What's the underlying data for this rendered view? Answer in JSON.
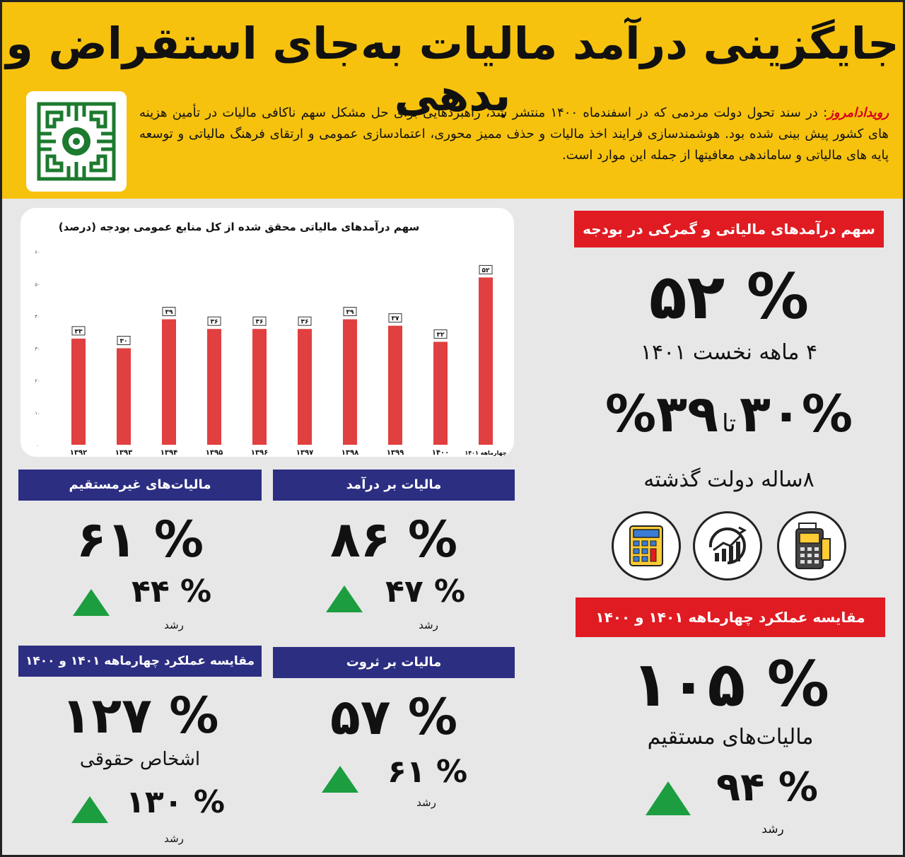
{
  "header": {
    "title": "جایگزینی درآمد مالیات به‌جای استقراض و بدهی",
    "source": "رویدادامروز",
    "intro": ": در سند تحول دولت مردمی که در اسفندماه ۱۴۰۰ منتشر شد، راهبردهایی برای حل مشکل سهم ناکافی مالیات در تأمین هزینه های کشور پیش بینی شده بود. هوشمندسازی فرایند اخذ مالیات و حذف ممیز محوری، اعتمادسازی عمومی و ارتقای فرهنگ مالیاتی و توسعه پایه های مالیاتی و ساماندهی معافیتها از جمله این موارد است."
  },
  "logo": {
    "icon": "tax-organization-logo-icon",
    "color": "#1c7a2e"
  },
  "right_panel": {
    "banner1": "سهم درآمدهای مالیاتی و گمرکی در بودجه",
    "stat1": "% ۵۲",
    "stat1_caption": "۴ ماهه نخست ۱۴۰۱",
    "stat2_from": "۳۰%",
    "stat2_to_word": "تا",
    "stat2_to": "۳۹%",
    "stat2_caption": "۸ساله دولت گذشته",
    "icons": [
      "calculator-icon",
      "growth-chart-icon",
      "card-reader-icon"
    ],
    "banner2": "مقایسه عملکرد چهارماهه ۱۴۰۱ و ۱۴۰۰",
    "stat3": "% ۱۰۵",
    "stat3_caption": "مالیات‌های مستقیم",
    "stat3_growth": "% ۹۴",
    "growth_label": "رشد"
  },
  "tiles": {
    "income": {
      "banner": "مالیات بر درآمد",
      "value": "% ۸۶",
      "growth": "% ۴۷",
      "growth_label": "رشد"
    },
    "indirect": {
      "banner": "مالیات‌های غیرمستقیم",
      "value": "% ۶۱",
      "growth": "% ۴۴",
      "growth_label": "رشد"
    },
    "wealth": {
      "banner": "مالیات بر ثروت",
      "value": "% ۵۷",
      "growth": "% ۶۱",
      "growth_label": "رشد"
    },
    "corporate": {
      "banner": "مقایسه عملکرد چهارماهه ۱۴۰۱ و ۱۴۰۰",
      "value": "% ۱۲۷",
      "caption": "اشخاص حقوقی",
      "growth": "% ۱۳۰",
      "growth_label": "رشد"
    }
  },
  "colors": {
    "accent_yellow": "#f6c20e",
    "red": "#e11b22",
    "navy": "#2c2e82",
    "bar": "#e0403f",
    "up_green": "#1c9e40"
  },
  "chart_data": {
    "type": "bar",
    "title": "سهم درآمدهای مالیاتی محقق شده از کل منابع عمومی بودجه (درصد)",
    "categories": [
      "۱۳۹۲",
      "۱۳۹۳",
      "۱۳۹۴",
      "۱۳۹۵",
      "۱۳۹۶",
      "۱۳۹۷",
      "۱۳۹۸",
      "۱۳۹۹",
      "۱۴۰۰",
      "چهارماهه ۱۴۰۱"
    ],
    "values": [
      33,
      30,
      39,
      36,
      36,
      36,
      39,
      37,
      32,
      52
    ],
    "value_labels": [
      "۳۳",
      "۳۰",
      "۳۹",
      "۳۶",
      "۳۶",
      "۳۶",
      "۳۹",
      "۳۷",
      "۳۲",
      "۵۲"
    ],
    "ylim": [
      0,
      60
    ],
    "yticks": [
      "۰",
      "۱۰",
      "۲۰",
      "۳۰",
      "۴۰",
      "۵۰",
      "۶۰"
    ],
    "grid": false
  }
}
